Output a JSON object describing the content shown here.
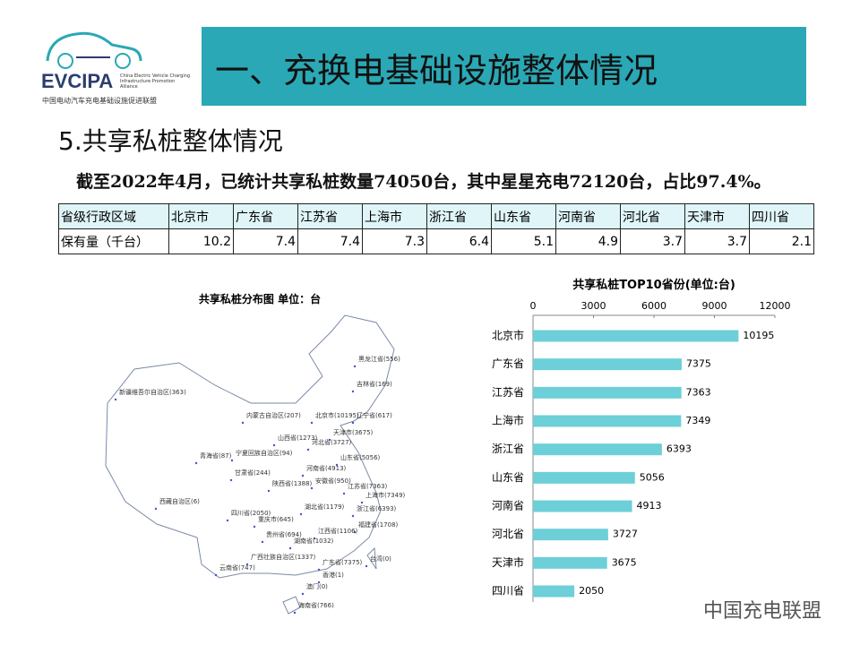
{
  "header": {
    "title": "一、充换电基础设施整体情况",
    "logo_name": "EVCIPA",
    "logo_en": "China Electric Vehicle Charging Infrastructure Promotion Alliance",
    "logo_cn": "中国电动汽车充电基础设施促进联盟"
  },
  "subtitle": "5.共享私桩整体情况",
  "summary": "截至2022年4月，已统计共享私桩数量74050台，其中星星充电72120台，占比97.4%。",
  "table": {
    "rows": [
      [
        "省级行政区域",
        "北京市",
        "广东省",
        "江苏省",
        "上海市",
        "浙江省",
        "山东省",
        "河南省",
        "河北省",
        "天津市",
        "四川省"
      ],
      [
        "保有量（千台）",
        10.2,
        7.4,
        7.4,
        7.3,
        6.4,
        5.1,
        4.9,
        3.7,
        3.7,
        2.1
      ]
    ]
  },
  "map": {
    "title": "共享私桩分布图   单位：台",
    "labels": [
      "黑龙江省(556)",
      "吉林省(169)",
      "新疆维吾尔自治区(363)",
      "内蒙古自治区(207)",
      "北京市(10195)",
      "辽宁省(617)",
      "天津市(3675)",
      "山西省(1273)",
      "河北省(3727)",
      "宁夏回族自治区(94)",
      "山东省(5056)",
      "青海省(87)",
      "甘肃省(244)",
      "河南省(4913)",
      "陕西省(1388)",
      "安徽省(950)",
      "江苏省(7363)",
      "上海市(7349)",
      "西藏自治区(6)",
      "四川省(2050)",
      "湖北省(1179)",
      "浙江省(6393)",
      "重庆市(645)",
      "福建省(1708)",
      "贵州省(694)",
      "江西省(1106)",
      "湖南省(1032)",
      "广西壮族自治区(1337)",
      "广东省(7375)",
      "台湾(0)",
      "云南省(747)",
      "香港(1)",
      "澳门(0)",
      "海南省(766)"
    ]
  },
  "chart_data": {
    "type": "hbar",
    "title": "共享私桩TOP10省份(单位:台)",
    "categories": [
      "北京市",
      "广东省",
      "江苏省",
      "上海市",
      "浙江省",
      "山东省",
      "河南省",
      "河北省",
      "天津市",
      "四川省"
    ],
    "values": [
      10195,
      7375,
      7363,
      7349,
      6393,
      5056,
      4913,
      3727,
      3675,
      2050
    ],
    "color": "#6dcfd8",
    "xlim": [
      0,
      12000
    ],
    "xticks": [
      0,
      3000,
      6000,
      9000,
      12000
    ]
  },
  "watermark": "中国充电联盟"
}
